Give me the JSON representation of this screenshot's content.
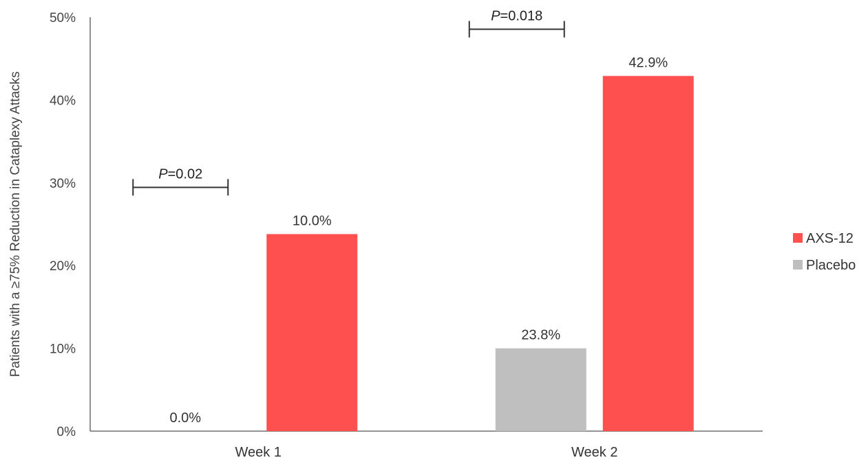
{
  "chart_data": {
    "type": "bar",
    "categories": [
      "Week 1",
      "Week 2"
    ],
    "series": [
      {
        "name": "Placebo",
        "values": [
          0.0,
          10.0
        ],
        "color": "#bfbfbf"
      },
      {
        "name": "AXS-12",
        "values": [
          23.8,
          42.9
        ],
        "color": "#ff5050"
      }
    ],
    "data_labels": [
      [
        "0.0%",
        "10.0%"
      ],
      [
        "23.8%",
        "42.9%"
      ]
    ],
    "ylabel": "Patients with a ≥75% Reduction in Cataplexy Attacks",
    "ylim": [
      0,
      50
    ],
    "yticks": [
      0,
      10,
      20,
      30,
      40,
      50
    ],
    "ytick_labels": [
      "0%",
      "10%",
      "20%",
      "30%",
      "40%",
      "50%"
    ],
    "significance": [
      {
        "category": "Week 1",
        "p_symbol": "P",
        "p_value": "=0.02"
      },
      {
        "category": "Week 2",
        "p_symbol": "P",
        "p_value": "=0.018"
      }
    ],
    "legend": {
      "position": "right",
      "entries": [
        "AXS-12",
        "Placebo"
      ]
    },
    "grid": false
  }
}
